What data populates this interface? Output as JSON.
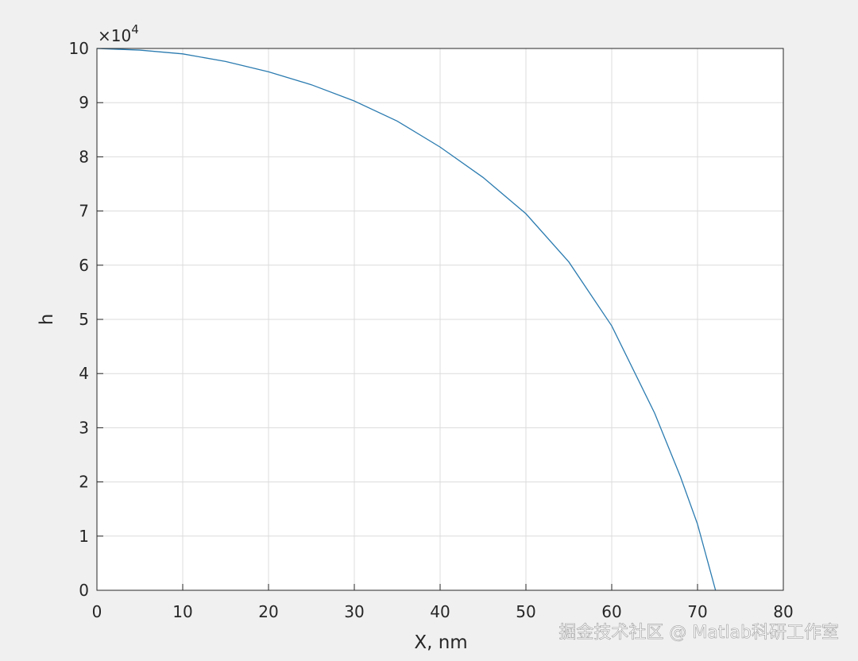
{
  "chart_data": {
    "type": "line",
    "x_label": "X, nm",
    "y_label": "h",
    "y_multiplier": {
      "base": "×10",
      "exponent": "4"
    },
    "x": [
      0,
      5,
      10,
      15,
      20,
      25,
      30,
      35,
      40,
      45,
      50,
      55,
      60,
      65,
      68,
      70,
      72.1
    ],
    "series": [
      {
        "color": "#2b7bb0",
        "values": [
          10,
          9.97,
          9.9,
          9.76,
          9.57,
          9.33,
          9.03,
          8.66,
          8.18,
          7.62,
          6.95,
          6.06,
          4.88,
          3.27,
          2.1,
          1.22,
          0
        ]
      }
    ],
    "xlim": [
      0,
      80
    ],
    "xticks": [
      0,
      10,
      20,
      30,
      40,
      50,
      60,
      70,
      80
    ],
    "ylim": [
      0,
      10
    ],
    "yticks": [
      0,
      1,
      2,
      3,
      4,
      5,
      6,
      7,
      8,
      9,
      10
    ],
    "grid": true
  },
  "watermark": "掘金技术社区 @ Matlab科研工作室"
}
